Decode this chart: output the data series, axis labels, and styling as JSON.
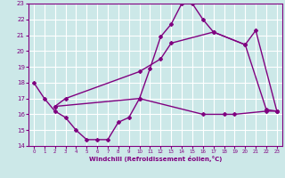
{
  "xlabel": "Windchill (Refroidissement éolien,°C)",
  "bg_color": "#cce8e8",
  "grid_color": "#ffffff",
  "line_color": "#800080",
  "marker": "D",
  "markersize": 2,
  "linewidth": 1.0,
  "x_range": [
    -0.5,
    23.5
  ],
  "y_range": [
    14,
    23
  ],
  "yticks": [
    14,
    15,
    16,
    17,
    18,
    19,
    20,
    21,
    22,
    23
  ],
  "xticks": [
    0,
    1,
    2,
    3,
    4,
    5,
    6,
    7,
    8,
    9,
    10,
    11,
    12,
    13,
    14,
    15,
    16,
    17,
    18,
    19,
    20,
    21,
    22,
    23
  ],
  "s1_x": [
    0,
    1,
    2,
    3,
    4,
    5,
    6,
    7,
    8,
    9,
    10,
    11,
    12,
    13,
    14,
    15,
    16,
    17,
    20,
    22,
    23
  ],
  "s1_y": [
    18.0,
    17.0,
    16.2,
    15.8,
    15.0,
    14.4,
    14.4,
    14.4,
    15.5,
    15.8,
    17.0,
    18.9,
    20.9,
    21.7,
    23.0,
    23.0,
    22.0,
    21.2,
    20.4,
    16.3,
    16.2
  ],
  "s2_x": [
    2,
    3,
    10,
    12,
    13,
    17,
    20,
    21,
    23
  ],
  "s2_y": [
    16.5,
    17.0,
    18.7,
    19.5,
    20.5,
    21.2,
    20.4,
    21.3,
    16.2
  ],
  "s3_x": [
    2,
    10,
    16,
    18,
    19,
    22,
    23
  ],
  "s3_y": [
    16.5,
    17.0,
    16.0,
    16.0,
    16.0,
    16.2,
    16.2
  ]
}
